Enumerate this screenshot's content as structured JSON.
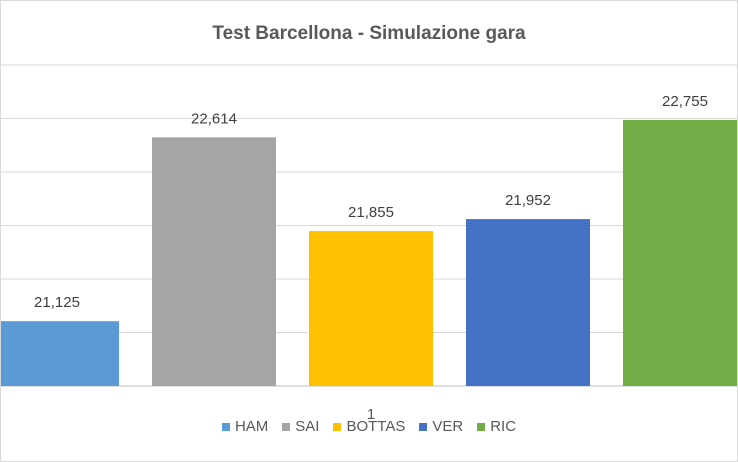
{
  "chart_data": {
    "type": "bar",
    "title": "Test Barcellona - Simulazione gara",
    "categories": [
      "1"
    ],
    "series": [
      {
        "name": "HAM",
        "values": [
          21.125
        ],
        "label": "21,125",
        "color": "#5b9bd5"
      },
      {
        "name": "SAI",
        "values": [
          22.614
        ],
        "label": "22,614",
        "color": "#a5a5a5"
      },
      {
        "name": "BOTTAS",
        "values": [
          21.855
        ],
        "label": "21,855",
        "color": "#ffc000"
      },
      {
        "name": "VER",
        "values": [
          21.952
        ],
        "label": "21,952",
        "color": "#4472c4"
      },
      {
        "name": "RIC",
        "values": [
          22.755
        ],
        "label": "22,755",
        "color": "#70ad47"
      }
    ],
    "ylim": [
      20.6,
      23.2
    ],
    "grid": true,
    "legend_position": "bottom"
  }
}
